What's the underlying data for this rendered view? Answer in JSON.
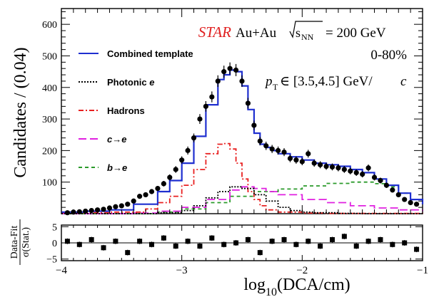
{
  "chart_data": {
    "type": "line",
    "ylabel": "Candidates / (0.04)",
    "ratio_ylabel_num": "Data-Fit",
    "ratio_ylabel_den": "σ(Stat.)",
    "xlabel": "log10(DCA/cm)",
    "xlim": [
      -4,
      -1
    ],
    "ylim": [
      0,
      650
    ],
    "ratio_ylim": [
      -5.5,
      5.5
    ],
    "x_ticks": [
      -4,
      -3,
      -2,
      -1
    ],
    "y_ticks": [
      100,
      200,
      300,
      400,
      500,
      600
    ],
    "ratio_ticks": [
      -5,
      0,
      5
    ],
    "annotations": {
      "experiment": "STAR",
      "system": "Au+Au",
      "energy": "= 200 GeV",
      "centrality": "0-80%",
      "pt_range": "∈ [3.5,4.5] GeV/",
      "pt_unit": "c"
    },
    "legend": [
      {
        "label": "Combined template",
        "color": "#1f2fd0",
        "style": "solid"
      },
      {
        "label": "Photonic",
        "label_suffix": "e",
        "color": "#000000",
        "style": "dotted"
      },
      {
        "label": "Hadrons",
        "color": "#e82020",
        "style": "dashdot"
      },
      {
        "label": "c",
        "label_mid": "→",
        "label_suffix": "e",
        "color": "#e020e0",
        "style": "longdash"
      },
      {
        "label": "b",
        "label_mid": "→",
        "label_suffix": "e",
        "color": "#2a9a2a",
        "style": "dashed"
      }
    ],
    "series": [
      {
        "name": "Combined template",
        "color": "#1f2fd0",
        "x": [
          -4.0,
          -3.8,
          -3.6,
          -3.4,
          -3.2,
          -3.1,
          -3.0,
          -2.9,
          -2.8,
          -2.7,
          -2.65,
          -2.6,
          -2.55,
          -2.5,
          -2.45,
          -2.4,
          -2.35,
          -2.3,
          -2.25,
          -2.2,
          -2.1,
          -2.0,
          -1.9,
          -1.8,
          -1.7,
          -1.6,
          -1.5,
          -1.4,
          -1.3,
          -1.2,
          -1.1,
          -1.0
        ],
        "y": [
          5,
          8,
          12,
          30,
          70,
          105,
          160,
          245,
          345,
          425,
          440,
          455,
          450,
          405,
          330,
          255,
          220,
          210,
          200,
          190,
          180,
          170,
          160,
          155,
          150,
          140,
          130,
          110,
          90,
          65,
          45,
          30
        ]
      },
      {
        "name": "Photonic e",
        "color": "#000000",
        "x": [
          -4.0,
          -3.5,
          -3.2,
          -3.0,
          -2.9,
          -2.8,
          -2.7,
          -2.6,
          -2.5,
          -2.4,
          -2.3,
          -2.2,
          -2.1,
          -2.0,
          -1.9,
          -1.7,
          -1.5,
          -1.0
        ],
        "y": [
          0,
          0,
          3,
          10,
          25,
          50,
          70,
          85,
          80,
          60,
          40,
          20,
          10,
          5,
          3,
          1,
          0,
          0
        ]
      },
      {
        "name": "Hadrons",
        "color": "#e82020",
        "x": [
          -4.0,
          -3.6,
          -3.3,
          -3.2,
          -3.1,
          -3.0,
          -2.9,
          -2.8,
          -2.7,
          -2.65,
          -2.6,
          -2.55,
          -2.5,
          -2.45,
          -2.4,
          -2.35,
          -2.3,
          -2.2,
          -2.0,
          -1.8,
          -1.0
        ],
        "y": [
          3,
          5,
          15,
          35,
          55,
          90,
          140,
          190,
          220,
          222,
          205,
          160,
          110,
          70,
          45,
          25,
          12,
          5,
          2,
          1,
          0
        ]
      },
      {
        "name": "c→e",
        "color": "#e020e0",
        "x": [
          -4.0,
          -3.4,
          -3.2,
          -3.0,
          -2.8,
          -2.6,
          -2.5,
          -2.4,
          -2.3,
          -2.2,
          -2.0,
          -1.8,
          -1.6,
          -1.4,
          -1.2,
          -1.0
        ],
        "y": [
          0,
          2,
          8,
          20,
          45,
          75,
          85,
          80,
          70,
          60,
          45,
          35,
          25,
          18,
          12,
          8
        ]
      },
      {
        "name": "b→e",
        "color": "#2a9a2a",
        "x": [
          -4.0,
          -3.2,
          -3.0,
          -2.8,
          -2.6,
          -2.4,
          -2.2,
          -2.0,
          -1.8,
          -1.6,
          -1.5,
          -1.4,
          -1.3,
          -1.2,
          -1.1,
          -1.0
        ],
        "y": [
          0,
          5,
          15,
          35,
          55,
          70,
          78,
          88,
          96,
          100,
          100,
          95,
          85,
          65,
          45,
          28
        ]
      },
      {
        "name": "Data",
        "x": [
          -3.95,
          -3.9,
          -3.85,
          -3.8,
          -3.75,
          -3.7,
          -3.65,
          -3.6,
          -3.55,
          -3.5,
          -3.45,
          -3.4,
          -3.35,
          -3.3,
          -3.25,
          -3.2,
          -3.15,
          -3.1,
          -3.05,
          -3.0,
          -2.95,
          -2.9,
          -2.85,
          -2.8,
          -2.75,
          -2.7,
          -2.65,
          -2.6,
          -2.55,
          -2.5,
          -2.45,
          -2.4,
          -2.35,
          -2.3,
          -2.25,
          -2.2,
          -2.15,
          -2.1,
          -2.05,
          -2.0,
          -1.95,
          -1.9,
          -1.85,
          -1.8,
          -1.75,
          -1.7,
          -1.65,
          -1.6,
          -1.55,
          -1.5,
          -1.45,
          -1.4,
          -1.35,
          -1.3,
          -1.25,
          -1.2,
          -1.15,
          -1.1,
          -1.05
        ],
        "y": [
          3,
          5,
          6,
          8,
          10,
          12,
          14,
          18,
          22,
          25,
          30,
          40,
          55,
          60,
          70,
          80,
          95,
          115,
          140,
          170,
          200,
          240,
          300,
          340,
          370,
          420,
          450,
          460,
          455,
          420,
          350,
          280,
          230,
          215,
          205,
          200,
          195,
          175,
          170,
          165,
          190,
          160,
          155,
          150,
          148,
          145,
          140,
          135,
          130,
          125,
          145,
          115,
          105,
          90,
          75,
          60,
          45,
          35,
          30
        ]
      }
    ],
    "ratio_points": {
      "x": [
        -3.95,
        -3.85,
        -3.75,
        -3.65,
        -3.55,
        -3.45,
        -3.35,
        -3.25,
        -3.15,
        -3.05,
        -2.95,
        -2.85,
        -2.75,
        -2.65,
        -2.55,
        -2.45,
        -2.35,
        -2.25,
        -2.15,
        -2.05,
        -1.95,
        -1.85,
        -1.75,
        -1.65,
        -1.55,
        -1.45,
        -1.35,
        -1.25,
        -1.15,
        -1.05
      ],
      "y": [
        0.5,
        -0.5,
        1.0,
        -1.5,
        0.5,
        -3.0,
        0.5,
        -0.5,
        1.5,
        -1.0,
        0.5,
        -1.0,
        1.5,
        -0.5,
        0.0,
        1.0,
        -3.0,
        0.5,
        1.0,
        -0.5,
        0.5,
        -1.0,
        1.0,
        2.0,
        -1.0,
        0.5,
        1.0,
        -0.5,
        0.0,
        -2.0
      ]
    }
  }
}
